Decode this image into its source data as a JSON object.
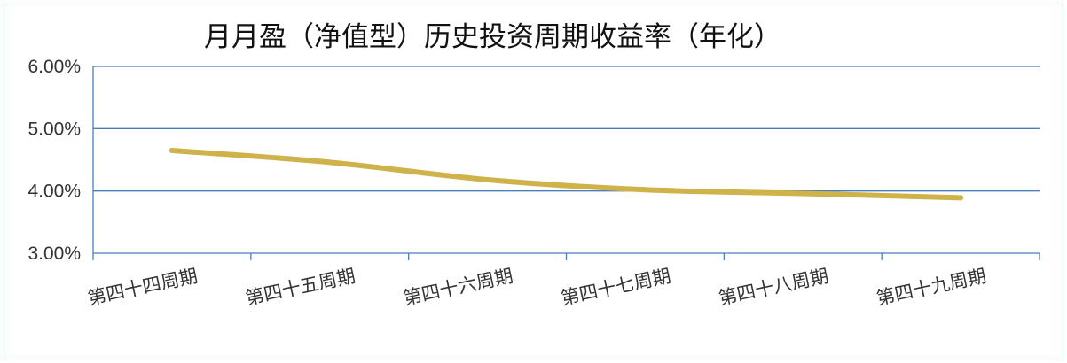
{
  "chart_data": {
    "type": "line",
    "title": "月月盈（净值型）历史投资周期收益率（年化）",
    "categories": [
      "第四十四周期",
      "第四十五周期",
      "第四十六周期",
      "第四十七周期",
      "第四十八周期",
      "第四十九周期"
    ],
    "series": [
      {
        "values": [
          4.65,
          4.46,
          4.18,
          4.02,
          3.96,
          3.89
        ]
      }
    ],
    "ylim": [
      3.0,
      6.0
    ],
    "yticks": [
      3.0,
      4.0,
      5.0,
      6.0
    ],
    "ytick_labels": [
      "3.00%",
      "4.00%",
      "5.00%",
      "6.00%"
    ],
    "gridlines": [
      4.0,
      5.0,
      6.0
    ],
    "grid": true,
    "legend": "none",
    "colors": {
      "line": "#cfb24a",
      "grid": "#4a7ebb",
      "axis": "#4a7ebb",
      "border": "#7fa2cf"
    }
  }
}
